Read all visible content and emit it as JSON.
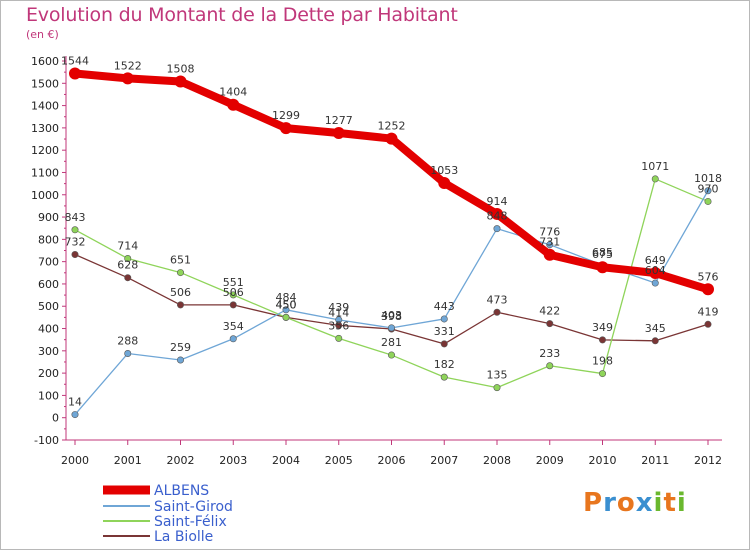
{
  "title": "Evolution du Montant de la Dette par Habitant",
  "subtitle": "(en €)",
  "logo": {
    "letters": [
      "P",
      "r",
      "o",
      "x",
      "i",
      "t",
      "i"
    ],
    "colors": [
      "#e8761e",
      "#3a8fd0",
      "#e8761e",
      "#3a8fd0",
      "#6ab82e",
      "#e8761e",
      "#6ab82e"
    ]
  },
  "chart_data": {
    "type": "line",
    "x": [
      "2000",
      "2001",
      "2002",
      "2003",
      "2004",
      "2005",
      "2006",
      "2007",
      "2008",
      "2009",
      "2010",
      "2011",
      "2012"
    ],
    "ylim": [
      -100,
      1650
    ],
    "yticks": [
      -100,
      0,
      100,
      200,
      300,
      400,
      500,
      600,
      700,
      800,
      900,
      1000,
      1100,
      1200,
      1300,
      1400,
      1500,
      1600
    ],
    "grid": false,
    "legend": "bottom-left",
    "series": [
      {
        "name": "ALBENS",
        "color": "#e30000",
        "values": [
          1544,
          1522,
          1508,
          1404,
          1299,
          1277,
          1252,
          1053,
          914,
          731,
          675,
          649,
          576
        ]
      },
      {
        "name": "Saint-Girod",
        "color": "#6fa6d6",
        "values": [
          14,
          288,
          259,
          354,
          484,
          439,
          403,
          443,
          848,
          776,
          685,
          604,
          1018
        ]
      },
      {
        "name": "Saint-Félix",
        "color": "#8fd45a",
        "values": [
          843,
          714,
          651,
          551,
          450,
          356,
          281,
          182,
          135,
          233,
          198,
          1071,
          970
        ]
      },
      {
        "name": "La Biolle",
        "color": "#7a3535",
        "values": [
          732,
          628,
          506,
          506,
          450,
          414,
          398,
          331,
          473,
          422,
          349,
          345,
          419
        ]
      }
    ]
  }
}
